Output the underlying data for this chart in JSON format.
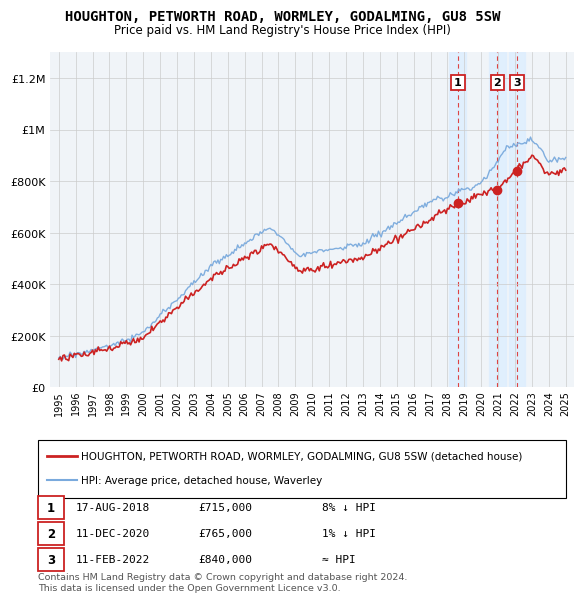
{
  "title": "HOUGHTON, PETWORTH ROAD, WORMLEY, GODALMING, GU8 5SW",
  "subtitle": "Price paid vs. HM Land Registry's House Price Index (HPI)",
  "hpi_label": "HPI: Average price, detached house, Waverley",
  "property_label": "HOUGHTON, PETWORTH ROAD, WORMLEY, GODALMING, GU8 5SW (detached house)",
  "table_rows": [
    {
      "num": "1",
      "date": "17-AUG-2018",
      "price": "£715,000",
      "change": "8% ↓ HPI"
    },
    {
      "num": "2",
      "date": "11-DEC-2020",
      "price": "£765,000",
      "change": "1% ↓ HPI"
    },
    {
      "num": "3",
      "date": "11-FEB-2022",
      "price": "£840,000",
      "change": "≈ HPI"
    }
  ],
  "footer": "Contains HM Land Registry data © Crown copyright and database right 2024.\nThis data is licensed under the Open Government Licence v3.0.",
  "ylim": [
    0,
    1300000
  ],
  "yticks": [
    0,
    200000,
    400000,
    600000,
    800000,
    1000000,
    1200000
  ],
  "ytick_labels": [
    "£0",
    "£200K",
    "£400K",
    "£600K",
    "£800K",
    "£1M",
    "£1.2M"
  ],
  "xlim_start": 1994.5,
  "xlim_end": 2025.5,
  "xticks": [
    1995,
    1996,
    1997,
    1998,
    1999,
    2000,
    2001,
    2002,
    2003,
    2004,
    2005,
    2006,
    2007,
    2008,
    2009,
    2010,
    2011,
    2012,
    2013,
    2014,
    2015,
    2016,
    2017,
    2018,
    2019,
    2020,
    2021,
    2022,
    2023,
    2024,
    2025
  ],
  "sale_dates": [
    2018.622,
    2020.956,
    2022.117
  ],
  "sale_values": [
    715000,
    765000,
    840000
  ],
  "sale_labels": [
    "1",
    "2",
    "3"
  ],
  "hpi_color": "#7aaadd",
  "property_color": "#cc2222",
  "sale_marker_color": "#cc2222",
  "sale_vline_color": "#dd4444",
  "shade_color": "#ddeeff",
  "grid_color": "#cccccc",
  "bg_color": "#ffffff",
  "plot_bg_color": "#f0f4f8"
}
